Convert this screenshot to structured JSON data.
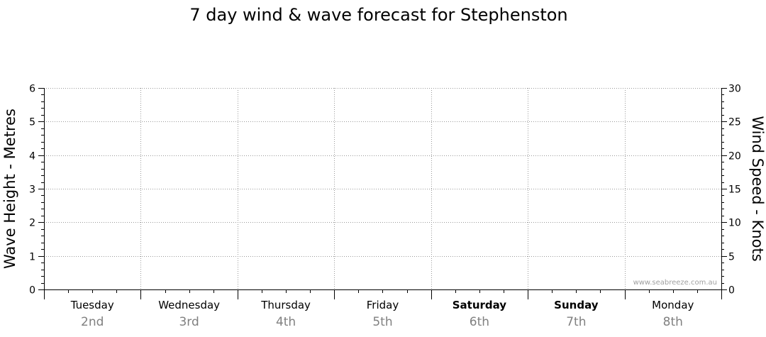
{
  "chart_data": {
    "type": "line",
    "title": "7 day wind & wave forecast for Stephenston",
    "ylabel": "Wave Height - Metres",
    "y2label": "Wind Speed - Knots",
    "ylim": [
      0,
      6
    ],
    "y2lim": [
      0,
      30
    ],
    "yticks": [
      "0",
      "1",
      "2",
      "3",
      "4",
      "5",
      "6"
    ],
    "y2ticks": [
      "0",
      "5",
      "10",
      "15",
      "20",
      "25",
      "30"
    ],
    "grid": true,
    "days": [
      {
        "name": "Tuesday",
        "date": "2nd",
        "weekend": false
      },
      {
        "name": "Wednesday",
        "date": "3rd",
        "weekend": false
      },
      {
        "name": "Thursday",
        "date": "4th",
        "weekend": false
      },
      {
        "name": "Friday",
        "date": "5th",
        "weekend": false
      },
      {
        "name": "Saturday",
        "date": "6th",
        "weekend": true
      },
      {
        "name": "Sunday",
        "date": "7th",
        "weekend": true
      },
      {
        "name": "Monday",
        "date": "8th",
        "weekend": false
      }
    ],
    "series": [],
    "watermark": "www.seabreeze.com.au"
  },
  "colors": {
    "axis": "#000000",
    "grid": "#999999",
    "date_text": "#808080",
    "watermark": "#a0a0a0"
  }
}
